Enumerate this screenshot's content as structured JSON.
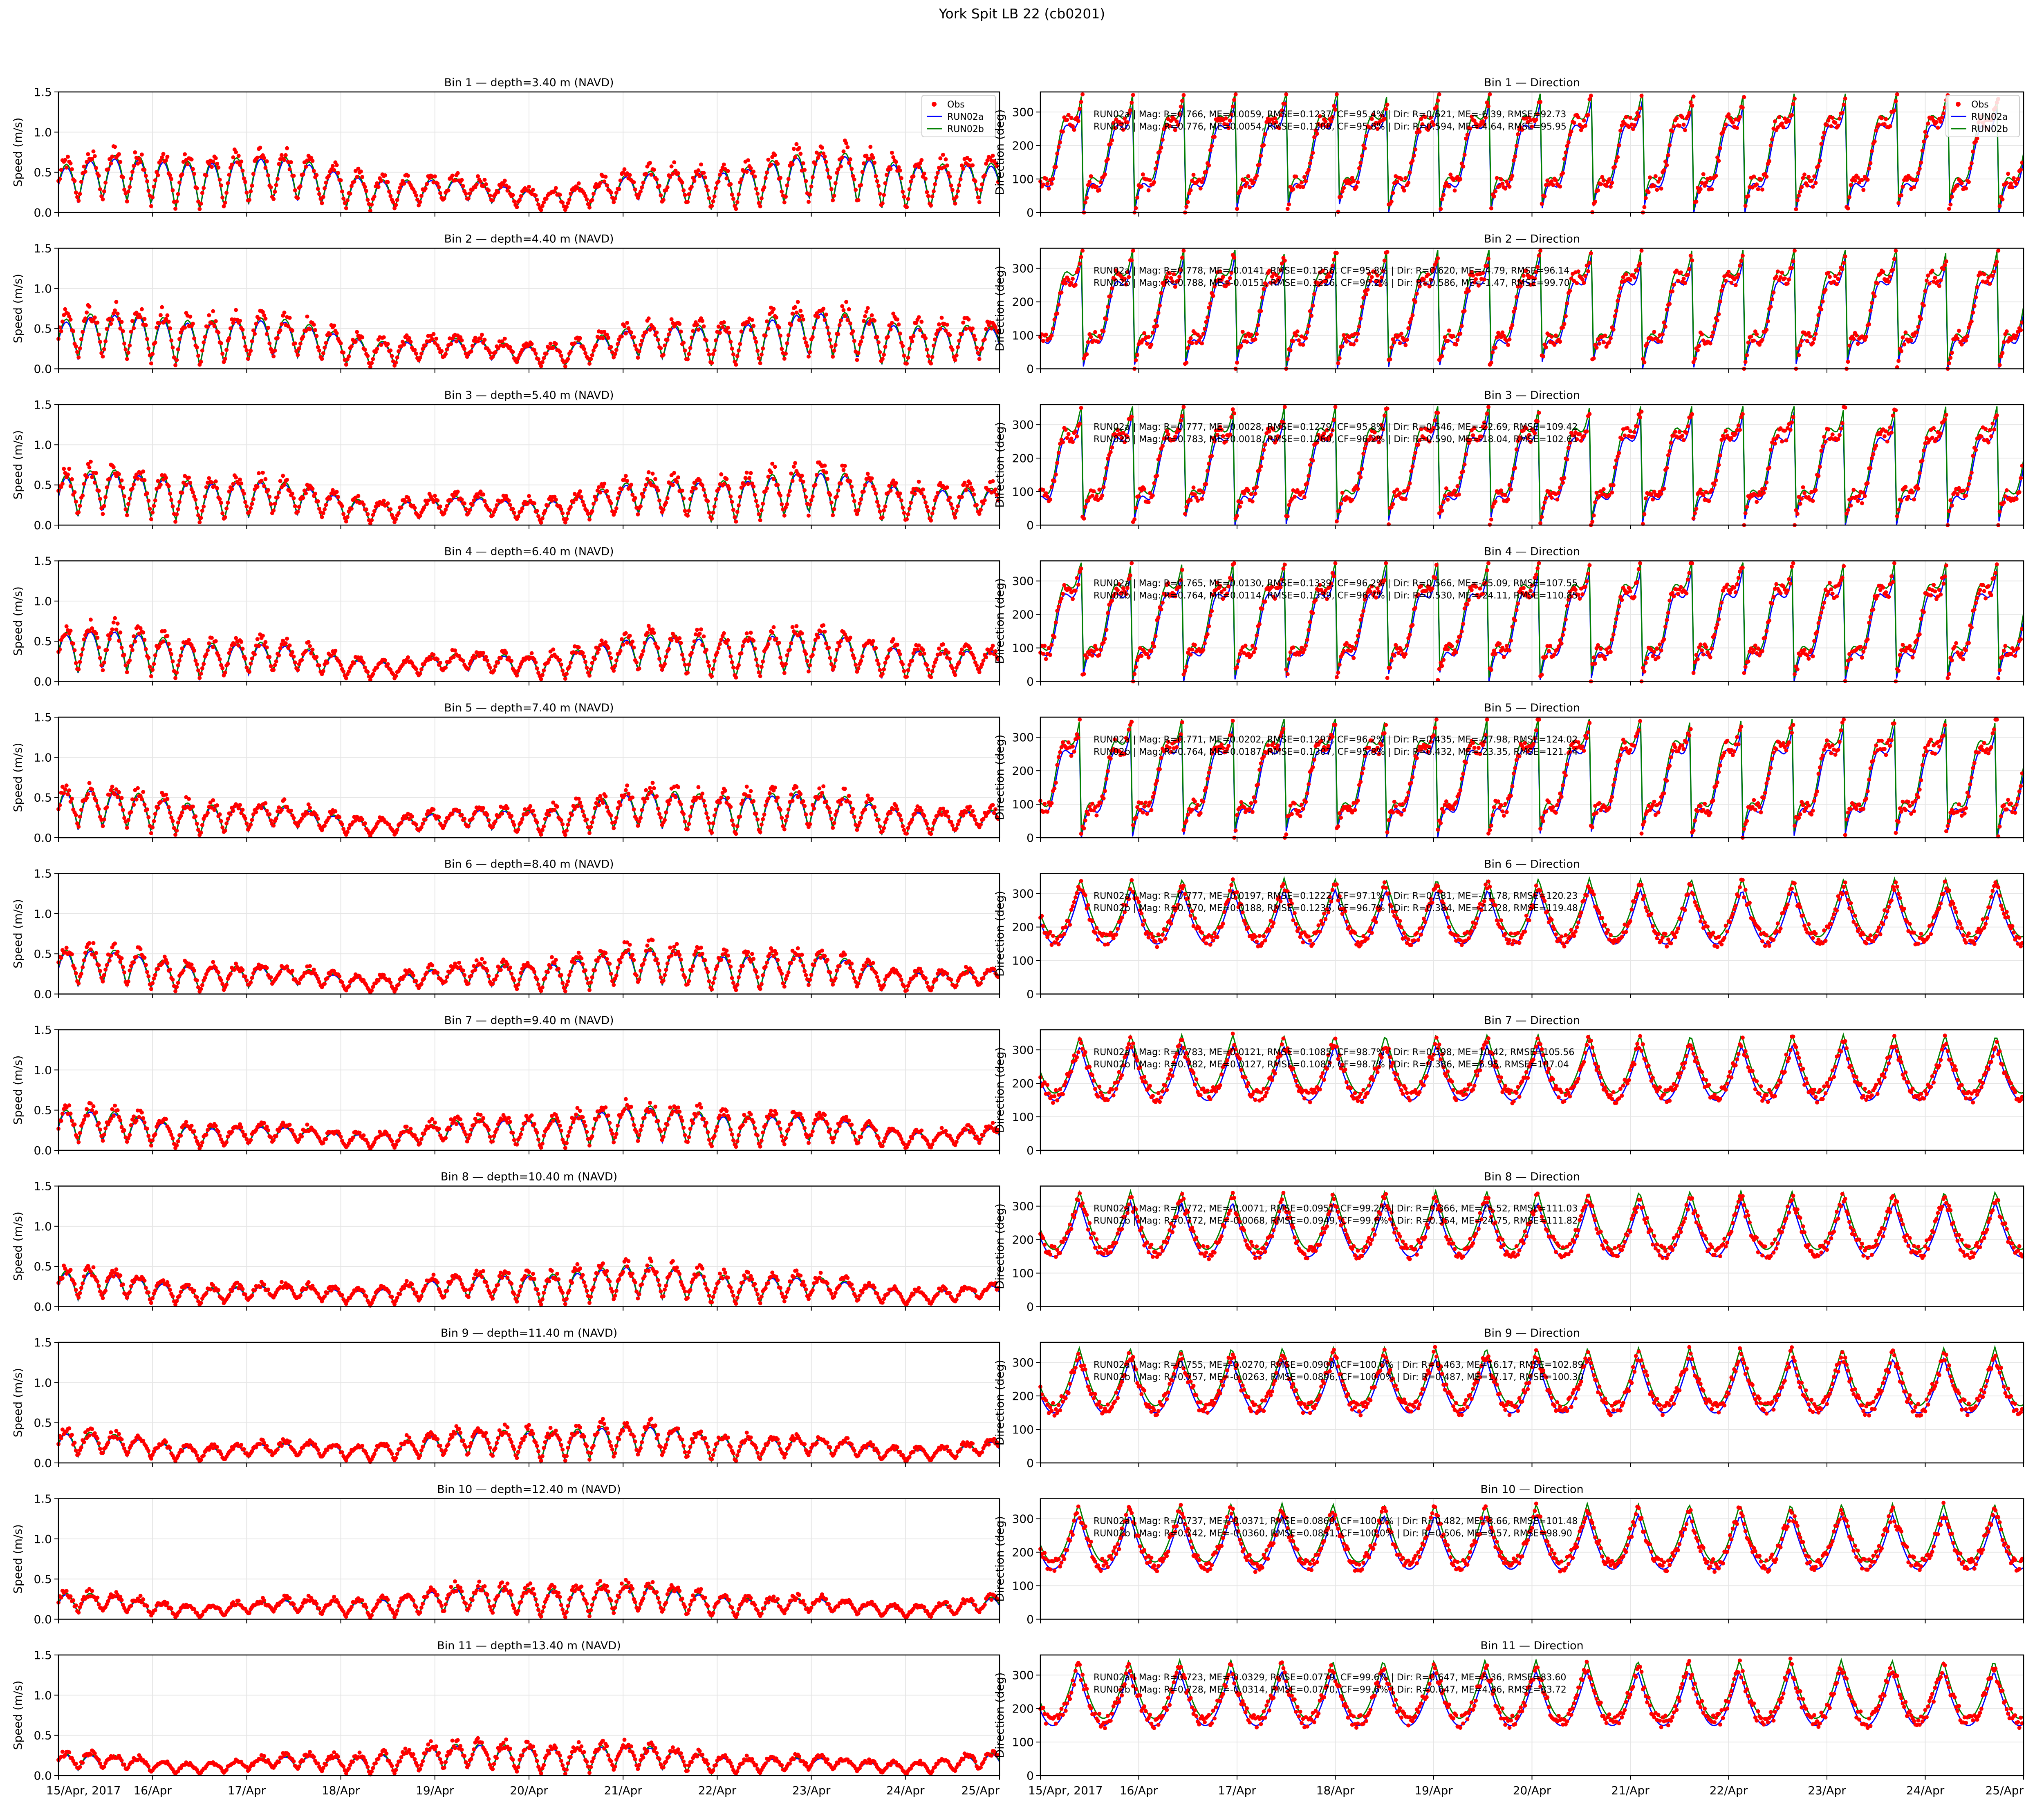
{
  "figure": {
    "title": "York Spit LB 22 (cb0201)"
  },
  "colors": {
    "obs": "#ff0000",
    "run02a": "#0000ff",
    "run02b": "#008000",
    "grid": "#e6e6e6"
  },
  "chart_data": {
    "type": "scatter",
    "layout": "11 rows x 2 columns (speed, direction) sharing a time x-axis",
    "x_axis": {
      "range": [
        "2017-04-15",
        "2017-04-25"
      ],
      "tick_labels": [
        "15/Apr, 2017",
        "16/Apr",
        "17/Apr",
        "18/Apr",
        "19/Apr",
        "20/Apr",
        "21/Apr",
        "22/Apr",
        "23/Apr",
        "24/Apr",
        "25/Apr"
      ]
    },
    "speed_axis": {
      "ylabel": "Speed (m/s)",
      "ylim": [
        0,
        1.5
      ],
      "ticks": [
        "0.0",
        "0.5",
        "1.0",
        "1.5"
      ]
    },
    "direction_axis": {
      "ylabel": "Direction (deg)",
      "ylim": [
        0,
        360
      ],
      "ticks": [
        "0",
        "100",
        "200",
        "300"
      ]
    },
    "legend": {
      "placement": "top-right",
      "entries": [
        "Obs",
        "RUN02a",
        "RUN02b"
      ]
    },
    "grid": true,
    "bins": [
      {
        "bin": 1,
        "speed_title": "Bin 1 — depth=3.40 m (NAVD)",
        "dir_title": "Bin 1 — Direction",
        "stats": [
          "RUN02a | Mag: R=0.766, ME=0.0059, RMSE=0.1237, CF=95.4% | Dir: R=0.621, ME=-6.39, RMSE=92.73",
          "RUN02b | Mag: R=0.776, ME=0.0054, RMSE=0.1208, CF=95.8% | Dir: R=0.594, ME=-4.64, RMSE=95.95"
        ]
      },
      {
        "bin": 2,
        "speed_title": "Bin 2 — depth=4.40 m (NAVD)",
        "dir_title": "Bin 2 — Direction",
        "stats": [
          "RUN02a | Mag: R=0.778, ME=-0.0141, RMSE=0.1256, CF=95.8% | Dir: R=0.620, ME=-4.79, RMSE=96.14",
          "RUN02b | Mag: R=0.788, ME=-0.0151, RMSE=0.1226, CF=96.2% | Dir: R=0.586, ME=-1.47, RMSE=99.70"
        ]
      },
      {
        "bin": 3,
        "speed_title": "Bin 3 — depth=5.40 m (NAVD)",
        "dir_title": "Bin 3 — Direction",
        "stats": [
          "RUN02a | Mag: R=0.777, ME=0.0028, RMSE=0.1279, CF=95.8% | Dir: R=0.546, ME=-22.69, RMSE=109.42",
          "RUN02b | Mag: R=0.783, ME=0.0018, RMSE=0.1260, CF=96.2% | Dir: R=0.590, ME=-18.04, RMSE=102.61"
        ]
      },
      {
        "bin": 4,
        "speed_title": "Bin 4 — depth=6.40 m (NAVD)",
        "dir_title": "Bin 4 — Direction",
        "stats": [
          "RUN02a | Mag: R=0.765, ME=0.0130, RMSE=0.1339, CF=96.2% | Dir: R=0.566, ME=-25.09, RMSE=107.55",
          "RUN02b | Mag: R=0.764, ME=0.0114, RMSE=0.1339, CF=96.7% | Dir: R=0.530, ME=-24.11, RMSE=110.85"
        ]
      },
      {
        "bin": 5,
        "speed_title": "Bin 5 — depth=7.40 m (NAVD)",
        "dir_title": "Bin 5 — Direction",
        "stats": [
          "RUN02a | Mag: R=0.771, ME=0.0202, RMSE=0.1292, CF=96.2% | Dir: R=0.435, ME=-27.98, RMSE=124.02",
          "RUN02b | Mag: R=0.764, ME=0.0187, RMSE=0.1307, CF=95.8% | Dir: R=0.432, ME=-23.35, RMSE=121.74"
        ]
      },
      {
        "bin": 6,
        "speed_title": "Bin 6 — depth=8.40 m (NAVD)",
        "dir_title": "Bin 6 — Direction",
        "stats": [
          "RUN02a | Mag: R=0.777, ME=0.0197, RMSE=0.1222, CF=97.1% | Dir: R=0.381, ME=-11.78, RMSE=120.23",
          "RUN02b | Mag: R=0.770, ME=0.0188, RMSE=0.1235, CF=96.7% | Dir: R=0.384, ME=-12.28, RMSE=119.48"
        ]
      },
      {
        "bin": 7,
        "speed_title": "Bin 7 — depth=9.40 m (NAVD)",
        "dir_title": "Bin 7 — Direction",
        "stats": [
          "RUN02a | Mag: R=0.783, ME=0.0121, RMSE=0.1085, CF=98.7% | Dir: R=0.398, ME=10.42, RMSE=105.56",
          "RUN02b | Mag: R=0.782, ME=0.0127, RMSE=0.1083, CF=98.7% | Dir: R=0.386, ME=6.95, RMSE=107.04"
        ]
      },
      {
        "bin": 8,
        "speed_title": "Bin 8 — depth=10.40 m (NAVD)",
        "dir_title": "Bin 8 — Direction",
        "stats": [
          "RUN02a | Mag: R=0.772, ME=-0.0071, RMSE=0.0951, CF=99.2% | Dir: R=0.366, ME=25.52, RMSE=111.03",
          "RUN02b | Mag: R=0.772, ME=-0.0068, RMSE=0.0949, CF=99.6% | Dir: R=0.354, ME=24.75, RMSE=111.82"
        ]
      },
      {
        "bin": 9,
        "speed_title": "Bin 9 — depth=11.40 m (NAVD)",
        "dir_title": "Bin 9 — Direction",
        "stats": [
          "RUN02a | Mag: R=0.755, ME=-0.0270, RMSE=0.0900, CF=100.0% | Dir: R=0.463, ME=16.17, RMSE=102.89",
          "RUN02b | Mag: R=0.757, ME=-0.0263, RMSE=0.0896, CF=100.0% | Dir: R=0.487, ME=17.17, RMSE=100.30"
        ]
      },
      {
        "bin": 10,
        "speed_title": "Bin 10 — depth=12.40 m (NAVD)",
        "dir_title": "Bin 10 — Direction",
        "stats": [
          "RUN02a | Mag: R=0.737, ME=-0.0371, RMSE=0.0860, CF=100.0% | Dir: R=0.482, ME=8.66, RMSE=101.48",
          "RUN02b | Mag: R=0.742, ME=-0.0360, RMSE=0.0851, CF=100.0% | Dir: R=0.506, ME=9.57, RMSE=98.90"
        ]
      },
      {
        "bin": 11,
        "speed_title": "Bin 11 — depth=13.40 m (NAVD)",
        "dir_title": "Bin 11 — Direction",
        "stats": [
          "RUN02a | Mag: R=0.723, ME=-0.0329, RMSE=0.0779, CF=99.6% | Dir: R=0.647, ME=5.36, RMSE=83.60",
          "RUN02b | Mag: R=0.728, ME=-0.0314, RMSE=0.0770, CF=99.6% | Dir: R=0.647, ME=4.86, RMSE=83.72"
        ]
      }
    ]
  }
}
